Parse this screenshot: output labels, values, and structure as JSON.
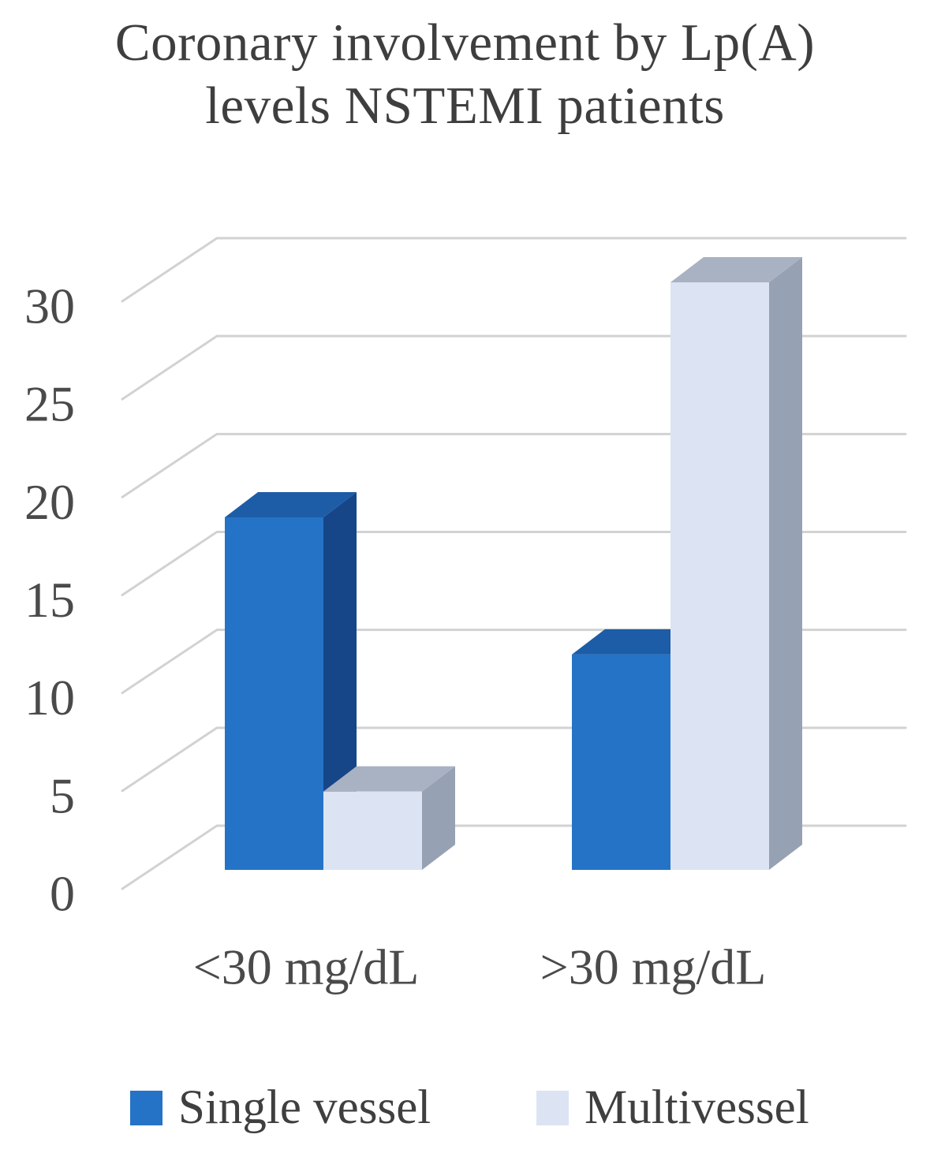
{
  "title": {
    "line1": "Coronary involvement by Lp(A)",
    "line2": "levels NSTEMI patients"
  },
  "chart_data": {
    "type": "bar",
    "subtype": "3d-clustered-column",
    "title": "Coronary involvement by Lp(A) levels NSTEMI patients",
    "categories": [
      "<30 mg/dL",
      ">30 mg/dL"
    ],
    "series": [
      {
        "name": "Single vessel",
        "values": [
          18,
          11
        ],
        "color": "#2573C7",
        "color_top": "#1D5CA6",
        "color_side": "#164687"
      },
      {
        "name": "Multivessel",
        "values": [
          4,
          30
        ],
        "color": "#DCE4F3",
        "color_top": "#A9B2C2",
        "color_side": "#96A1B4"
      }
    ],
    "xlabel": "",
    "ylabel": "",
    "y_ticks": [
      0,
      5,
      10,
      15,
      20,
      25,
      30
    ],
    "ylim": [
      0,
      32
    ],
    "grid": true,
    "gridline_color": "#D2D2D2",
    "axis_text_color": "#4A4A4A",
    "title_text_color": "#3E3E3E",
    "legend_position": "bottom"
  }
}
